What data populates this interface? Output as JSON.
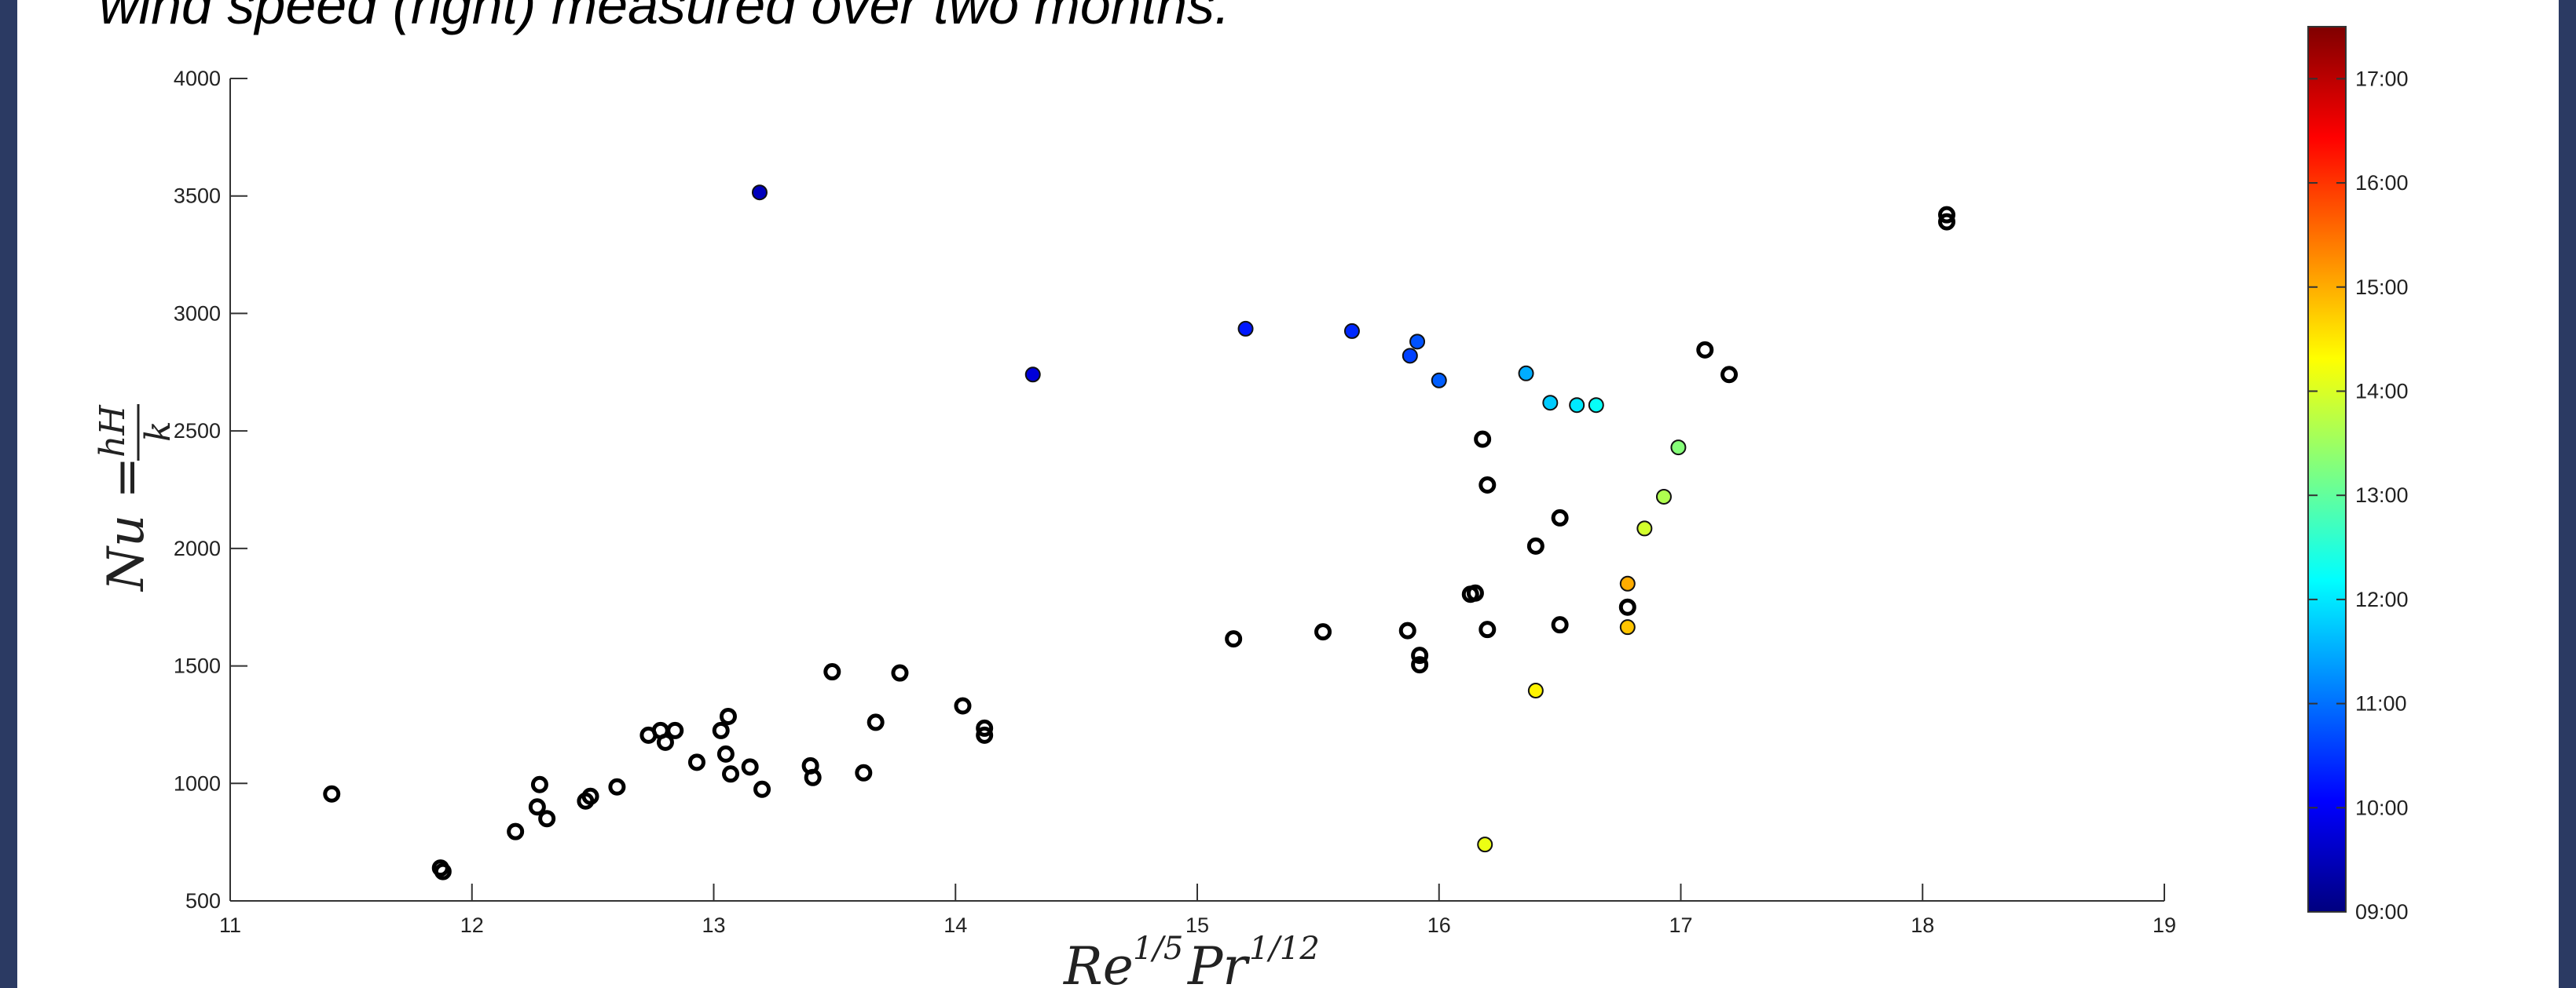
{
  "caption": "wind speed (right) measured over two months.",
  "chart_data": {
    "type": "scatter",
    "title": "",
    "xlabel_base": "Re",
    "xlabel_exp1": "1/5",
    "xlabel_mid": "Pr",
    "xlabel_exp2": "1/12",
    "ylabel_lhs": "Nu =",
    "ylabel_num": "hH",
    "ylabel_den": "k",
    "xlim": [
      11,
      19
    ],
    "ylim": [
      500,
      4000
    ],
    "x_ticks": [
      "11",
      "12",
      "13",
      "14",
      "15",
      "16",
      "17",
      "18",
      "19"
    ],
    "y_ticks": [
      "500",
      "1000",
      "1500",
      "2000",
      "2500",
      "3000",
      "3500",
      "4000"
    ],
    "grid": false,
    "colorbar": {
      "colormap": "jet",
      "range": [
        "09:00",
        "17:30"
      ],
      "ticks": [
        "09:00",
        "10:00",
        "11:00",
        "12:00",
        "13:00",
        "14:00",
        "15:00",
        "16:00",
        "17:00"
      ]
    },
    "series": [
      {
        "marker": "open-circle",
        "points": [
          [
            11.42,
            955
          ],
          [
            11.87,
            640
          ],
          [
            11.88,
            625
          ],
          [
            12.18,
            795
          ],
          [
            12.27,
            900
          ],
          [
            12.28,
            995
          ],
          [
            12.31,
            850
          ],
          [
            12.47,
            925
          ],
          [
            12.49,
            945
          ],
          [
            12.6,
            985
          ],
          [
            12.73,
            1205
          ],
          [
            12.78,
            1225
          ],
          [
            12.8,
            1175
          ],
          [
            12.84,
            1225
          ],
          [
            12.93,
            1090
          ],
          [
            13.03,
            1225
          ],
          [
            13.05,
            1125
          ],
          [
            13.06,
            1285
          ],
          [
            13.07,
            1040
          ],
          [
            13.15,
            1070
          ],
          [
            13.2,
            975
          ],
          [
            13.4,
            1075
          ],
          [
            13.41,
            1025
          ],
          [
            13.49,
            1475
          ],
          [
            13.62,
            1045
          ],
          [
            13.67,
            1260
          ],
          [
            13.77,
            1470
          ],
          [
            14.03,
            1330
          ],
          [
            14.12,
            1235
          ],
          [
            14.12,
            1205
          ],
          [
            15.15,
            1615
          ],
          [
            15.52,
            1645
          ],
          [
            15.87,
            1650
          ],
          [
            15.92,
            1545
          ],
          [
            15.92,
            1505
          ],
          [
            16.13,
            1805
          ],
          [
            16.15,
            1810
          ],
          [
            16.18,
            2465
          ],
          [
            16.2,
            2270
          ],
          [
            16.2,
            1655
          ],
          [
            16.4,
            2010
          ],
          [
            16.5,
            2130
          ],
          [
            16.5,
            1675
          ],
          [
            16.78,
            1750
          ],
          [
            17.1,
            2845
          ],
          [
            17.2,
            2740
          ],
          [
            18.1,
            3390
          ],
          [
            18.1,
            3420
          ]
        ]
      },
      {
        "marker": "filled-circle",
        "color_by": "time_hours",
        "points": [
          [
            13.19,
            3515,
            9.5
          ],
          [
            14.32,
            2740,
            9.75
          ],
          [
            15.2,
            2935,
            10.25
          ],
          [
            15.64,
            2925,
            10.4
          ],
          [
            15.88,
            2820,
            10.6
          ],
          [
            15.91,
            2880,
            10.75
          ],
          [
            16.0,
            2715,
            10.85
          ],
          [
            16.36,
            2745,
            11.5
          ],
          [
            16.46,
            2620,
            11.75
          ],
          [
            16.57,
            2610,
            12.0
          ],
          [
            16.65,
            2610,
            12.25
          ],
          [
            16.99,
            2430,
            13.3
          ],
          [
            16.93,
            2220,
            13.65
          ],
          [
            16.85,
            2085,
            13.95
          ],
          [
            16.78,
            1850,
            15.0
          ],
          [
            16.78,
            1665,
            14.8
          ],
          [
            16.4,
            1395,
            14.4
          ],
          [
            16.19,
            740,
            14.15
          ]
        ]
      }
    ]
  }
}
